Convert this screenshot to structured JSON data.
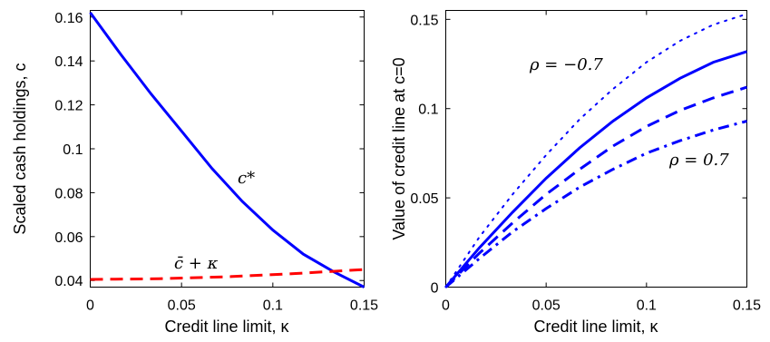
{
  "chart_data": [
    {
      "type": "line",
      "xlabel": "Credit line limit, κ",
      "ylabel": "Scaled cash holdings, c",
      "xlim": [
        0,
        0.15
      ],
      "ylim": [
        0.037,
        0.163
      ],
      "x_ticks": [
        "0",
        "0.05",
        "0.1",
        "0.15"
      ],
      "y_ticks": [
        "0.04",
        "0.06",
        "0.08",
        "0.1",
        "0.12",
        "0.14",
        "0.16"
      ],
      "grid": false,
      "series": [
        {
          "color": "#0000ff",
          "style": "solid",
          "x": [
            0,
            0.0167,
            0.0333,
            0.05,
            0.0667,
            0.0833,
            0.1,
            0.1167,
            0.1333,
            0.15
          ],
          "y": [
            0.162,
            0.143,
            0.125,
            0.108,
            0.091,
            0.076,
            0.063,
            0.052,
            0.044,
            0.037
          ]
        },
        {
          "color": "#ff0000",
          "style": "dashed",
          "x": [
            0,
            0.0375,
            0.075,
            0.1125,
            0.15
          ],
          "y": [
            0.0405,
            0.0408,
            0.0417,
            0.0432,
            0.045
          ]
        }
      ],
      "annotations": [
        {
          "text": "c*",
          "x": 0.086,
          "y": 0.082
        },
        {
          "text": "c̄ + κ",
          "x": 0.068,
          "y": 0.0445
        }
      ]
    },
    {
      "type": "line",
      "xlabel": "Credit line limit, κ",
      "ylabel": "Value of credit line at c=0",
      "xlim": [
        0,
        0.15
      ],
      "ylim": [
        0,
        0.155
      ],
      "x_ticks": [
        "0",
        "0.05",
        "0.1",
        "0.15"
      ],
      "y_ticks": [
        "0",
        "0.05",
        "0.1",
        "0.15"
      ],
      "grid": false,
      "series": [
        {
          "color": "#0000ff",
          "style": "dotted",
          "x": [
            0,
            0.0167,
            0.0333,
            0.05,
            0.0667,
            0.0833,
            0.1,
            0.1167,
            0.1333,
            0.15
          ],
          "y": [
            0,
            0.028,
            0.052,
            0.074,
            0.094,
            0.111,
            0.126,
            0.138,
            0.147,
            0.153
          ]
        },
        {
          "color": "#0000ff",
          "style": "solid",
          "x": [
            0,
            0.0167,
            0.0333,
            0.05,
            0.0667,
            0.0833,
            0.1,
            0.1167,
            0.1333,
            0.15
          ],
          "y": [
            0,
            0.022,
            0.042,
            0.061,
            0.078,
            0.093,
            0.106,
            0.117,
            0.126,
            0.132
          ]
        },
        {
          "color": "#0000ff",
          "style": "dashed",
          "x": [
            0,
            0.0167,
            0.0333,
            0.05,
            0.0667,
            0.0833,
            0.1,
            0.1167,
            0.1333,
            0.15
          ],
          "y": [
            0,
            0.019,
            0.036,
            0.052,
            0.066,
            0.079,
            0.09,
            0.099,
            0.106,
            0.112
          ]
        },
        {
          "color": "#0000ff",
          "style": "dashdot",
          "x": [
            0,
            0.0167,
            0.0333,
            0.05,
            0.0667,
            0.0833,
            0.1,
            0.1167,
            0.1333,
            0.15
          ],
          "y": [
            0,
            0.016,
            0.031,
            0.044,
            0.056,
            0.066,
            0.075,
            0.082,
            0.088,
            0.093
          ]
        }
      ],
      "annotations": [
        {
          "text": "ρ = −0.7",
          "x": 0.043,
          "y": 0.127
        },
        {
          "text": "ρ = 0.7",
          "x": 0.109,
          "y": 0.072
        }
      ]
    }
  ]
}
